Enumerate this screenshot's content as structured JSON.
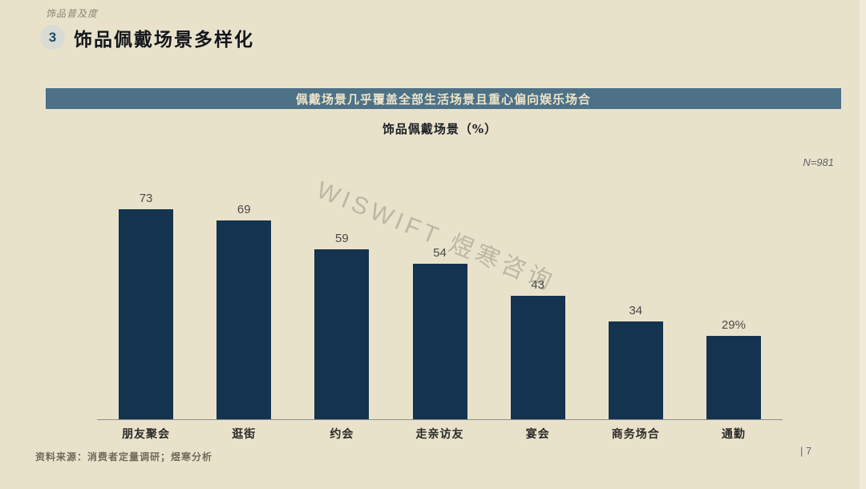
{
  "page": {
    "header_note": "饰品普及度",
    "section_number": "3",
    "title": "饰品佩戴场景多样化",
    "banner": "佩戴场景几乎覆盖全部生活场景且重心偏向娱乐场合",
    "watermark": "WISWIFT 煜寒咨询",
    "source": "资料来源：消费者定量调研；煜寒分析",
    "page_number": "| 7"
  },
  "colors": {
    "background": "#e9e2cb",
    "banner_bg": "#4d7187",
    "banner_text": "#ece4c8",
    "bar": "#14334e",
    "value_label": "#4a4a4a",
    "axis_line": "#8c8c8c"
  },
  "chart_data": {
    "type": "bar",
    "title": "饰品佩戴场景（%）",
    "sample_size": "N=981",
    "categories": [
      "朋友聚会",
      "逛街",
      "约会",
      "走亲访友",
      "宴会",
      "商务场合",
      "通勤"
    ],
    "values": [
      73,
      69,
      59,
      54,
      43,
      34,
      29
    ],
    "value_labels": [
      "73",
      "69",
      "59",
      "54",
      "43",
      "34",
      "29%"
    ],
    "ylabel": "",
    "xlabel": "",
    "ylim": [
      0,
      90
    ],
    "grid": false,
    "legend": "none"
  }
}
